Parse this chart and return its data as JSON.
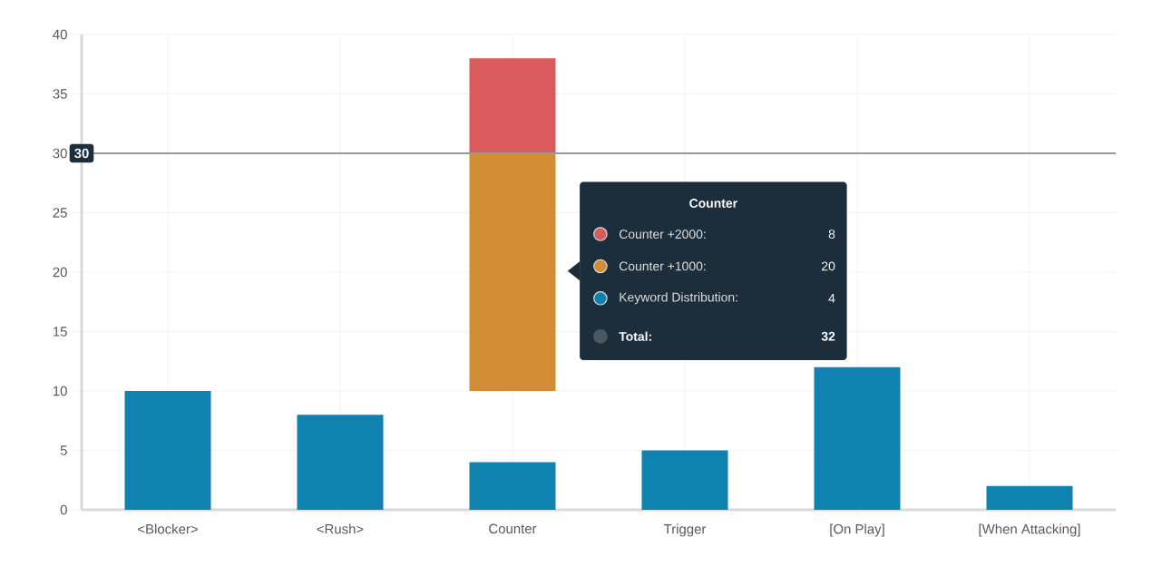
{
  "chart_data": {
    "type": "bar",
    "legend_title": "Counter",
    "categories": [
      "<Blocker>",
      "<Rush>",
      "Counter",
      "Trigger",
      "[On Play]",
      "[When Attacking]"
    ],
    "series": [
      {
        "name": "Counter +2000:",
        "color": "#d95b5e",
        "values": [
          null,
          null,
          8,
          null,
          null,
          null
        ],
        "base": [
          null,
          null,
          30,
          null,
          null,
          null
        ]
      },
      {
        "name": "Counter +1000:",
        "color": "#d38d35",
        "values": [
          null,
          null,
          20,
          null,
          null,
          null
        ],
        "base": [
          null,
          null,
          10,
          null,
          null,
          null
        ]
      },
      {
        "name": "Keyword Distribution:",
        "color": "#1082b0",
        "values": [
          10,
          8,
          4,
          5,
          12,
          2
        ],
        "base": [
          0,
          0,
          0,
          0,
          0,
          0
        ]
      }
    ],
    "annotations": [
      "8",
      "20",
      "4",
      "Total:",
      "32"
    ],
    "ylim": [
      0,
      40
    ],
    "yticks": [
      0,
      5,
      10,
      15,
      20,
      25,
      30,
      35,
      40
    ],
    "ref_lines": [
      {
        "axis": "y",
        "value": 30,
        "label": "30",
        "color": "#999999"
      }
    ],
    "grid": true,
    "legend": "center"
  }
}
